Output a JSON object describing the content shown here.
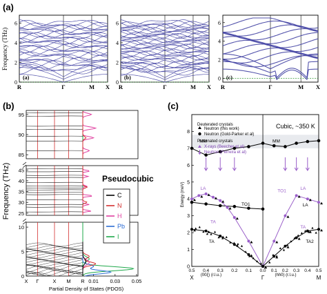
{
  "figure": {
    "panel_labels": [
      "(a)",
      "(b)",
      "(c)"
    ]
  },
  "chart_data": [
    {
      "id": "a1",
      "type": "line",
      "panel_label": "(a)",
      "sub_label": "(a)",
      "ylabel": "Frequency (THz)",
      "ylim": [
        0,
        6.8
      ],
      "yticks": [
        0,
        2,
        4,
        6
      ],
      "x_tick_labels": [
        "R",
        "Γ",
        "M",
        "X"
      ],
      "x_tick_positions": [
        0,
        0.5,
        0.82,
        1
      ],
      "band_count": 32,
      "band_color": "#4a4aa6",
      "zero_line": true
    },
    {
      "id": "a2",
      "type": "line",
      "sub_label": "(b)",
      "ylim": [
        0,
        6.8
      ],
      "yticks": [
        0,
        2,
        4,
        6
      ],
      "x_tick_labels": [
        "R",
        "Γ",
        "M",
        "X"
      ],
      "x_tick_positions": [
        0,
        0.5,
        0.82,
        1
      ],
      "band_count": 40,
      "band_color": "#4a4aa6",
      "zero_line": true
    },
    {
      "id": "a3",
      "type": "line",
      "sub_label": "(c)",
      "ylim": [
        -0.4,
        6.8
      ],
      "yticks": [
        0,
        2,
        4,
        6
      ],
      "x_tick_labels": [
        "R",
        "Γ",
        "M",
        "X"
      ],
      "x_tick_positions": [
        0,
        0.5,
        0.82,
        1
      ],
      "band_count": 14,
      "band_color": "#4a4aa6",
      "zero_line": true
    },
    {
      "id": "b",
      "type": "line",
      "panel_label": "(b)",
      "annotation": "Pseudocubic",
      "ylabel": "Frequency (THz)",
      "xlabel": "Partial Density of States (PDOS)",
      "lower_yticks": [
        0,
        5,
        10
      ],
      "lower_ylim": [
        0,
        11
      ],
      "upper_yticks": [
        25,
        30,
        35,
        40,
        45
      ],
      "upper_ylim": [
        24,
        47
      ],
      "top_yticks": [
        85,
        90,
        95
      ],
      "top_ylim": [
        84,
        96
      ],
      "x_tick_labels": [
        "X",
        "Γ",
        "X",
        "M",
        "R"
      ],
      "x_tick_positions": [
        0,
        0.2,
        0.5,
        0.75,
        1
      ],
      "pdos_ticks": [
        "0.01",
        "0.03",
        "0.05"
      ],
      "pdos_tick_values": [
        0.01,
        0.03,
        0.05
      ],
      "legend": [
        "C",
        "N",
        "H",
        "Pb",
        "I"
      ],
      "legend_colors": [
        "#000000",
        "#d32f2f",
        "#e040a0",
        "#2b6cd4",
        "#1ea84a"
      ],
      "upper_bands": [
        25.6,
        27.8,
        29.0,
        31.2,
        33.6,
        34.6,
        35.8,
        36.6,
        37.6,
        39.2,
        41.5,
        42.5,
        44.2,
        45.6
      ],
      "top_bands": [
        86.0,
        88.4,
        89.6,
        91.3,
        92.1,
        94.6,
        95.4
      ]
    },
    {
      "id": "c",
      "type": "scatter",
      "panel_label": "(c)",
      "title": "Cubic, ~350 K",
      "ylabel": "Energy (meV)",
      "ylim": [
        0,
        9
      ],
      "yticks": [
        0,
        1,
        2,
        3,
        4,
        5,
        6,
        7,
        8
      ],
      "x_left_ticks": [
        "0.5",
        "0.4",
        "0.3",
        "0.2",
        "0.1",
        "0.0"
      ],
      "x_right_ticks": [
        "0.1",
        "0.2",
        "0.3",
        "0.4",
        "0.5"
      ],
      "x_sym_labels": [
        "X",
        "Γ",
        "M"
      ],
      "x_left_label": "(00ξ) (r.l.u.)",
      "x_right_label": "(hh0) (r.l.u.)",
      "legend": {
        "deuterated_heading": "Deuterated crystals",
        "deuterated_items": [
          "Neutron (this work)",
          "Neutron (Gold-Parker et al)"
        ],
        "protonated_heading": "Protonated crystals",
        "protonated_items": [
          "X-rays (Beecher et al)",
          "Neutron (Ferreira et al)"
        ]
      },
      "branch_labels": [
        "MM",
        "MM",
        "LA",
        "TO1",
        "TA",
        "LA",
        "TO1",
        "LA",
        "TA",
        "TA",
        "TA2"
      ],
      "series": [
        {
          "name": "MM",
          "x": [
            -0.5,
            -0.4,
            -0.3,
            -0.2,
            -0.1,
            0.0,
            0.1,
            0.2,
            0.3,
            0.4,
            0.5
          ],
          "y": [
            7.0,
            6.6,
            6.8,
            7.0,
            7.1,
            7.3,
            7.15,
            7.1,
            7.3,
            7.4,
            7.45
          ]
        },
        {
          "name": "TO1 left",
          "x": [
            -0.5,
            -0.4,
            -0.3,
            -0.2,
            -0.1,
            0.0
          ],
          "y": [
            3.8,
            3.7,
            3.6,
            3.55,
            3.45,
            3.4
          ]
        },
        {
          "name": "LA left",
          "x": [
            -0.5,
            -0.45,
            -0.4,
            -0.35,
            -0.3,
            -0.25,
            -0.2,
            -0.1,
            0.0
          ],
          "y": [
            4.0,
            4.2,
            4.3,
            4.1,
            3.9,
            3.5,
            2.9,
            1.5,
            0.0
          ]
        },
        {
          "name": "TA left",
          "x": [
            -0.5,
            -0.4,
            -0.3,
            -0.2,
            -0.1,
            0.0
          ],
          "y": [
            2.2,
            2.1,
            1.8,
            1.3,
            0.7,
            0.0
          ]
        },
        {
          "name": "LA right",
          "x": [
            0.0,
            0.1,
            0.2,
            0.3,
            0.4,
            0.5
          ],
          "y": [
            0.0,
            1.5,
            3.0,
            4.2,
            4.0,
            3.8
          ]
        },
        {
          "name": "TA right",
          "x": [
            0.0,
            0.1,
            0.2,
            0.3,
            0.4,
            0.5
          ],
          "y": [
            0.0,
            0.6,
            1.2,
            1.7,
            2.1,
            2.2
          ]
        }
      ],
      "arrow_x": [
        -0.4,
        -0.3,
        -0.2,
        0.2,
        0.3,
        0.4
      ],
      "shade_band": [
        7.0,
        7.8
      ]
    }
  ]
}
